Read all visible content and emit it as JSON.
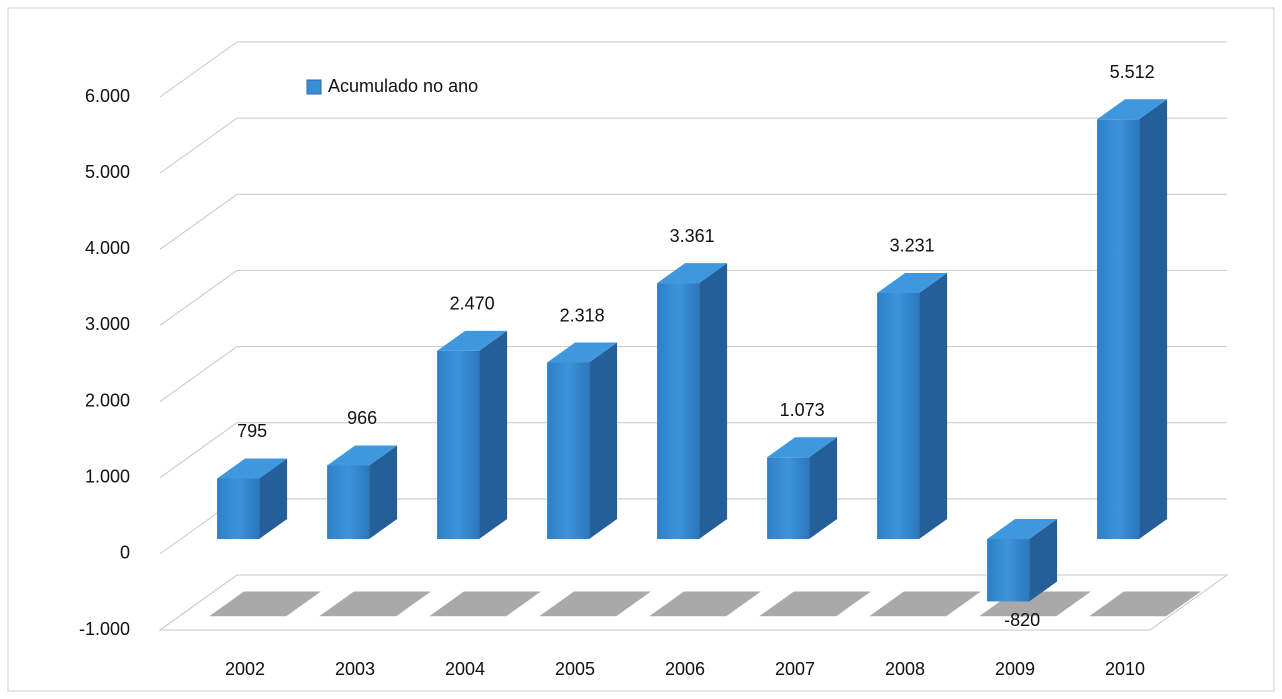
{
  "chart_data": {
    "type": "bar",
    "legend": "Acumulado no ano",
    "categories": [
      "2002",
      "2003",
      "2004",
      "2005",
      "2006",
      "2007",
      "2008",
      "2009",
      "2010"
    ],
    "values": [
      795,
      966,
      2470,
      2318,
      3361,
      1073,
      3231,
      -820,
      5512
    ],
    "value_labels": [
      "795",
      "966",
      "2.470",
      "2.318",
      "3.361",
      "1.073",
      "3.231",
      "-820",
      "5.512"
    ],
    "color": "#3a8fd4",
    "ylim": [
      -1000,
      6000
    ],
    "yticks": [
      {
        "value": -1000,
        "label": "-1.000"
      },
      0,
      {
        "value": 1000,
        "label": "1.000"
      },
      {
        "value": 2000,
        "label": "2.000"
      },
      {
        "value": 3000,
        "label": "3.000"
      },
      {
        "value": 4000,
        "label": "4.000"
      },
      {
        "value": 5000,
        "label": "5.000"
      },
      {
        "value": 6000,
        "label": "6.000"
      }
    ],
    "grid": true
  }
}
